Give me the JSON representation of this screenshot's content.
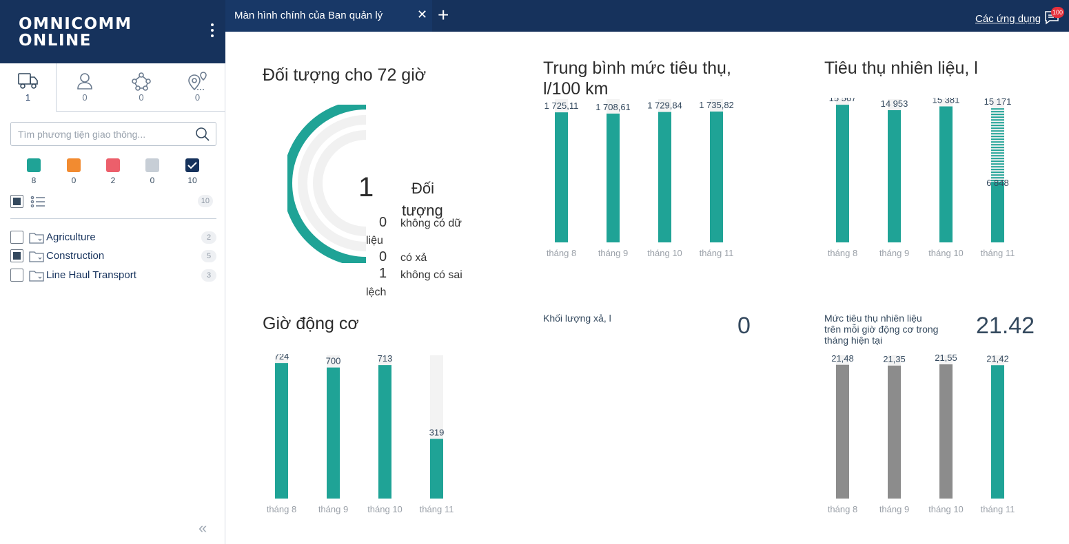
{
  "logo": {
    "line1": "OMNICOMM",
    "line2": "ONLINE"
  },
  "sidebar_tabs": [
    {
      "icon": "truck-icon",
      "count": "1"
    },
    {
      "icon": "person-icon",
      "count": "0"
    },
    {
      "icon": "route-icon",
      "count": "0"
    },
    {
      "icon": "geozone-icon",
      "count": "0"
    }
  ],
  "search": {
    "placeholder": "Tìm phương tiện giao thông...",
    "value": ""
  },
  "status_filters": [
    {
      "color": "#1fa396",
      "count": "8"
    },
    {
      "color": "#f28b30",
      "count": "0"
    },
    {
      "color": "#ec5f6b",
      "count": "2"
    },
    {
      "color": "#c7ced6",
      "count": "0"
    },
    {
      "color": "#16325c",
      "count": "10",
      "checked": true
    }
  ],
  "list_total": "10",
  "groups": [
    {
      "name": "Agriculture",
      "count": "2",
      "checked": false
    },
    {
      "name": "Construction",
      "count": "5",
      "checked": true
    },
    {
      "name": "Line Haul Transport",
      "count": "3",
      "checked": false
    }
  ],
  "topbar": {
    "tab_label": "Màn hình chính của Ban quản lý",
    "apps_label": "Các ứng dụng",
    "notif_count": "100"
  },
  "objects": {
    "title": "Đối tượng cho 72 giờ",
    "total": "1",
    "total_label_1": "Đối",
    "total_label_2": "tượng",
    "stats": [
      {
        "value": "0",
        "label": "không có dữ",
        "label2": "liệu"
      },
      {
        "value": "0",
        "label": "có xả",
        "label2": ""
      },
      {
        "value": "1",
        "label": "không có sai",
        "label2": "lệch"
      }
    ]
  },
  "avg_consumption": {
    "title_line1": "Trung bình mức tiêu thụ,",
    "title_line2": "l/100 km",
    "chart_data": {
      "type": "bar",
      "categories": [
        "tháng 8",
        "tháng 9",
        "tháng 10",
        "tháng 11"
      ],
      "values": [
        1725.11,
        1708.61,
        1729.84,
        1735.82
      ],
      "labels": [
        "1 725,11",
        "1 708,61",
        "1 729,84",
        "1 735,82"
      ],
      "ylim": [
        0,
        1900
      ]
    }
  },
  "fuel_consumption": {
    "title": "Tiêu thụ nhiên liệu, l",
    "chart_data": {
      "type": "bar",
      "categories": [
        "tháng 8",
        "tháng 9",
        "tháng 10",
        "tháng 11"
      ],
      "values": [
        15567,
        14953,
        15381,
        6848
      ],
      "labels": [
        "15 567",
        "14 953",
        "15 381",
        "6 848"
      ],
      "forecast_value": 15171,
      "forecast_label": "15 171",
      "ylim": [
        0,
        16200
      ]
    }
  },
  "engine_hours": {
    "title": "Giờ động cơ",
    "chart_data": {
      "type": "bar",
      "categories": [
        "tháng 8",
        "tháng 9",
        "tháng 10",
        "tháng 11"
      ],
      "values": [
        724,
        700,
        713,
        319
      ],
      "labels": [
        "724",
        "700",
        "713",
        "319"
      ],
      "ylim": [
        0,
        765
      ]
    }
  },
  "drain_volume": {
    "title": "Khối lượng xả, l",
    "value": "0"
  },
  "fuel_per_hour": {
    "title_line1": "Mức tiêu thụ nhiên liệu",
    "title_line2": "trên mỗi giờ động cơ trong",
    "title_line3": "tháng hiện tại",
    "value": "21.42",
    "chart_data": {
      "type": "bar",
      "categories": [
        "tháng 8",
        "tháng 9",
        "tháng 10",
        "tháng 11"
      ],
      "values": [
        21.48,
        21.35,
        21.55,
        21.42
      ],
      "labels": [
        "21,48",
        "21,35",
        "21,55",
        "21,42"
      ],
      "ylim": [
        0,
        23
      ]
    }
  },
  "colors": {
    "teal": "#1fa396",
    "gray_bar": "#8c8c8c",
    "track": "#f3f3f3",
    "navy": "#16325c"
  }
}
